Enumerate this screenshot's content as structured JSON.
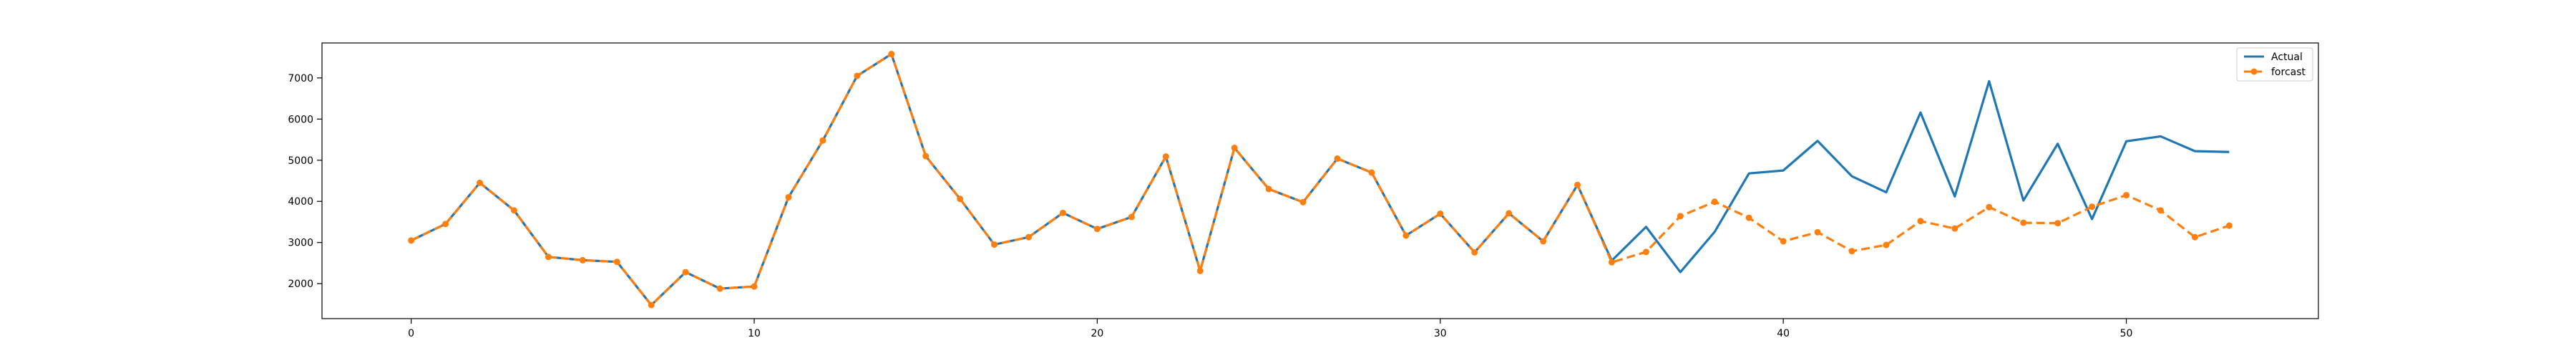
{
  "chart_data": {
    "type": "line",
    "title": "",
    "xlabel": "",
    "ylabel": "",
    "xlim": [
      -2.6,
      55.6
    ],
    "ylim": [
      1150,
      7850
    ],
    "x_ticks": [
      0,
      10,
      20,
      30,
      40,
      50
    ],
    "y_ticks": [
      2000,
      3000,
      4000,
      5000,
      6000,
      7000
    ],
    "grid": false,
    "legend_position": "top-right",
    "series": [
      {
        "name": "Actual",
        "style": "solid",
        "marker": "none",
        "color": "#1f77b4",
        "x": [
          0,
          1,
          2,
          3,
          4,
          5,
          6,
          7,
          8,
          9,
          10,
          11,
          12,
          13,
          14,
          15,
          16,
          17,
          18,
          19,
          20,
          21,
          22,
          23,
          24,
          25,
          26,
          27,
          28,
          29,
          30,
          31,
          32,
          33,
          34,
          35,
          36,
          37,
          38,
          39,
          40,
          41,
          42,
          43,
          44,
          45,
          46,
          47,
          48,
          49,
          50,
          51,
          52,
          53
        ],
        "values": [
          3050,
          3450,
          4450,
          3780,
          2650,
          2570,
          2530,
          1480,
          2280,
          1880,
          1930,
          4100,
          5480,
          7050,
          7580,
          5100,
          4060,
          2950,
          3130,
          3720,
          3330,
          3620,
          5090,
          2310,
          5300,
          4300,
          3980,
          5040,
          4700,
          3170,
          3700,
          2760,
          3710,
          3030,
          4400,
          2560,
          3380,
          2280,
          3260,
          4680,
          4750,
          5470,
          4610,
          4220,
          6160,
          4120,
          6920,
          4020,
          5400,
          3570,
          5460,
          5580,
          5220,
          5200
        ]
      },
      {
        "name": "forcast",
        "style": "dashed",
        "marker": "circle",
        "color": "#ff7f0e",
        "x": [
          0,
          1,
          2,
          3,
          4,
          5,
          6,
          7,
          8,
          9,
          10,
          11,
          12,
          13,
          14,
          15,
          16,
          17,
          18,
          19,
          20,
          21,
          22,
          23,
          24,
          25,
          26,
          27,
          28,
          29,
          30,
          31,
          32,
          33,
          34,
          35,
          36,
          37,
          38,
          39,
          40,
          41,
          42,
          43,
          44,
          45,
          46,
          47,
          48,
          49,
          50,
          51,
          52,
          53
        ],
        "values": [
          3050,
          3450,
          4450,
          3780,
          2650,
          2570,
          2530,
          1480,
          2280,
          1880,
          1930,
          4100,
          5480,
          7050,
          7580,
          5100,
          4060,
          2950,
          3130,
          3720,
          3330,
          3620,
          5090,
          2310,
          5300,
          4300,
          3980,
          5040,
          4700,
          3170,
          3700,
          2760,
          3710,
          3030,
          4400,
          2520,
          2770,
          3640,
          3990,
          3600,
          3030,
          3250,
          2790,
          2940,
          3520,
          3340,
          3860,
          3480,
          3470,
          3870,
          4150,
          3780,
          3130,
          3410
        ]
      }
    ]
  }
}
